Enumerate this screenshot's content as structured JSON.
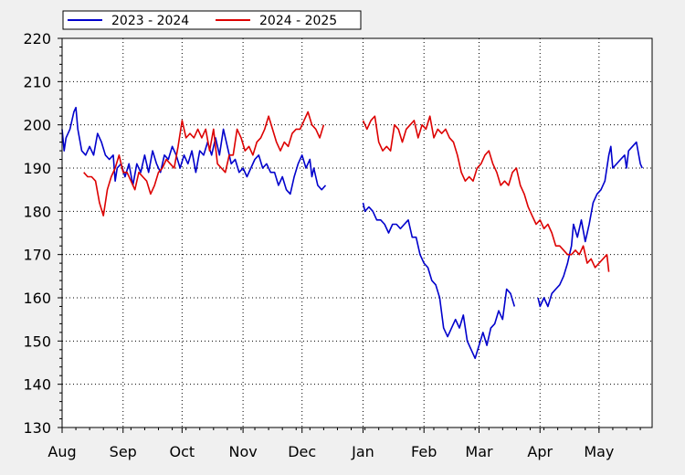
{
  "chart_data": {
    "type": "line",
    "title": "",
    "xlabel": "",
    "ylabel": "",
    "ylim": [
      130,
      220
    ],
    "yticks": [
      130,
      140,
      150,
      160,
      170,
      180,
      190,
      200,
      210,
      220
    ],
    "xticks": [
      "Aug",
      "Sep",
      "Oct",
      "Nov",
      "Dec",
      "Jan",
      "Feb",
      "Mar",
      "Apr",
      "May"
    ],
    "x_unit": "day index from start of Aug",
    "xlim": [
      0,
      300
    ],
    "xtick_positions": [
      0,
      31,
      61,
      92,
      122,
      153,
      184,
      212,
      243,
      273
    ],
    "grid": true,
    "legend": {
      "placement": "top-left",
      "entries": [
        "2023 - 2024",
        "2024 - 2025"
      ]
    },
    "series": [
      {
        "name": "2023 - 2024",
        "color": "#0000cc",
        "segments": [
          [
            [
              0,
              199
            ],
            [
              1,
              194
            ],
            [
              2,
              197
            ],
            [
              4,
              199
            ],
            [
              6,
              203
            ],
            [
              7,
              204
            ],
            [
              8,
              199
            ],
            [
              10,
              194
            ],
            [
              12,
              193
            ],
            [
              14,
              195
            ],
            [
              16,
              193
            ],
            [
              18,
              198
            ],
            [
              20,
              196
            ],
            [
              22,
              193
            ],
            [
              24,
              192
            ],
            [
              26,
              193
            ],
            [
              27,
              187
            ],
            [
              28,
              190
            ],
            [
              30,
              191
            ],
            [
              32,
              188
            ],
            [
              34,
              191
            ],
            [
              36,
              186
            ],
            [
              38,
              191
            ],
            [
              40,
              189
            ],
            [
              42,
              193
            ],
            [
              44,
              189
            ],
            [
              46,
              194
            ],
            [
              48,
              191
            ],
            [
              50,
              189
            ],
            [
              52,
              193
            ],
            [
              54,
              192
            ],
            [
              56,
              195
            ],
            [
              58,
              193
            ],
            [
              60,
              190
            ],
            [
              62,
              193
            ],
            [
              64,
              191
            ],
            [
              66,
              194
            ],
            [
              68,
              189
            ],
            [
              70,
              194
            ],
            [
              72,
              193
            ],
            [
              74,
              196
            ],
            [
              76,
              193
            ],
            [
              78,
              197
            ],
            [
              80,
              193
            ],
            [
              82,
              199
            ],
            [
              84,
              195
            ],
            [
              86,
              191
            ],
            [
              88,
              192
            ],
            [
              90,
              189
            ],
            [
              92,
              190
            ],
            [
              94,
              188
            ],
            [
              96,
              190
            ],
            [
              98,
              192
            ],
            [
              100,
              193
            ],
            [
              102,
              190
            ],
            [
              104,
              191
            ],
            [
              106,
              189
            ],
            [
              108,
              189
            ],
            [
              110,
              186
            ],
            [
              112,
              188
            ],
            [
              114,
              185
            ],
            [
              116,
              184
            ],
            [
              118,
              188
            ],
            [
              120,
              191
            ],
            [
              122,
              193
            ],
            [
              124,
              190
            ],
            [
              126,
              192
            ],
            [
              127,
              188
            ],
            [
              128,
              190
            ],
            [
              130,
              186
            ],
            [
              132,
              185
            ],
            [
              134,
              186
            ]
          ],
          [
            [
              153,
              182
            ],
            [
              154,
              180
            ],
            [
              156,
              181
            ],
            [
              158,
              180
            ],
            [
              160,
              178
            ],
            [
              162,
              178
            ],
            [
              164,
              177
            ],
            [
              166,
              175
            ],
            [
              168,
              177
            ],
            [
              170,
              177
            ],
            [
              172,
              176
            ],
            [
              174,
              177
            ],
            [
              176,
              178
            ],
            [
              178,
              174
            ],
            [
              180,
              174
            ],
            [
              182,
              170
            ],
            [
              184,
              168
            ],
            [
              186,
              167
            ],
            [
              188,
              164
            ],
            [
              190,
              163
            ],
            [
              192,
              160
            ],
            [
              194,
              153
            ],
            [
              196,
              151
            ],
            [
              198,
              153
            ],
            [
              200,
              155
            ],
            [
              202,
              153
            ],
            [
              204,
              156
            ],
            [
              206,
              150
            ],
            [
              208,
              148
            ],
            [
              210,
              146
            ],
            [
              212,
              149
            ],
            [
              214,
              152
            ],
            [
              216,
              149
            ],
            [
              218,
              153
            ],
            [
              220,
              154
            ],
            [
              222,
              157
            ],
            [
              224,
              155
            ],
            [
              226,
              162
            ],
            [
              228,
              161
            ],
            [
              230,
              158
            ]
          ],
          [
            [
              242,
              160
            ],
            [
              243,
              158
            ],
            [
              245,
              160
            ],
            [
              247,
              158
            ],
            [
              249,
              161
            ],
            [
              251,
              162
            ],
            [
              253,
              163
            ],
            [
              255,
              165
            ],
            [
              257,
              168
            ],
            [
              259,
              172
            ],
            [
              260,
              177
            ],
            [
              262,
              174
            ],
            [
              264,
              178
            ],
            [
              266,
              173
            ],
            [
              268,
              177
            ],
            [
              270,
              182
            ],
            [
              272,
              184
            ],
            [
              274,
              185
            ],
            [
              276,
              187
            ],
            [
              278,
              193
            ],
            [
              279,
              195
            ],
            [
              280,
              190
            ],
            [
              282,
              191
            ],
            [
              284,
              192
            ],
            [
              286,
              193
            ],
            [
              287,
              190
            ],
            [
              288,
              194
            ],
            [
              290,
              195
            ],
            [
              292,
              196
            ],
            [
              294,
              191
            ],
            [
              295,
              190
            ]
          ]
        ]
      },
      {
        "name": "2024 - 2025",
        "color": "#dd0000",
        "segments": [
          [
            [
              11,
              189
            ],
            [
              13,
              188
            ],
            [
              15,
              188
            ],
            [
              17,
              187
            ],
            [
              19,
              182
            ],
            [
              21,
              179
            ],
            [
              23,
              185
            ],
            [
              25,
              188
            ],
            [
              27,
              190
            ],
            [
              29,
              193
            ],
            [
              31,
              189
            ],
            [
              33,
              189
            ],
            [
              35,
              187
            ],
            [
              37,
              185
            ],
            [
              39,
              189
            ],
            [
              41,
              188
            ],
            [
              43,
              187
            ],
            [
              45,
              184
            ],
            [
              47,
              186
            ],
            [
              49,
              189
            ],
            [
              51,
              190
            ],
            [
              53,
              192
            ],
            [
              55,
              191
            ],
            [
              57,
              190
            ],
            [
              59,
              195
            ],
            [
              61,
              201
            ],
            [
              63,
              197
            ],
            [
              65,
              198
            ],
            [
              67,
              197
            ],
            [
              69,
              199
            ],
            [
              71,
              197
            ],
            [
              73,
              199
            ],
            [
              75,
              194
            ],
            [
              77,
              199
            ],
            [
              79,
              191
            ],
            [
              81,
              190
            ],
            [
              83,
              189
            ],
            [
              85,
              193
            ],
            [
              87,
              193
            ],
            [
              89,
              199
            ],
            [
              91,
              197
            ],
            [
              93,
              194
            ],
            [
              95,
              195
            ],
            [
              97,
              193
            ],
            [
              99,
              196
            ],
            [
              101,
              197
            ],
            [
              103,
              199
            ],
            [
              105,
              202
            ],
            [
              107,
              199
            ],
            [
              109,
              196
            ],
            [
              111,
              194
            ],
            [
              113,
              196
            ],
            [
              115,
              195
            ],
            [
              117,
              198
            ],
            [
              119,
              199
            ],
            [
              121,
              199
            ],
            [
              123,
              201
            ],
            [
              125,
              203
            ],
            [
              127,
              200
            ],
            [
              129,
              199
            ],
            [
              131,
              197
            ],
            [
              133,
              200
            ]
          ],
          [
            [
              153,
              201
            ],
            [
              155,
              199
            ],
            [
              157,
              201
            ],
            [
              159,
              202
            ],
            [
              161,
              196
            ],
            [
              163,
              194
            ],
            [
              165,
              195
            ],
            [
              167,
              194
            ],
            [
              169,
              200
            ],
            [
              171,
              199
            ],
            [
              173,
              196
            ],
            [
              175,
              199
            ],
            [
              177,
              200
            ],
            [
              179,
              201
            ],
            [
              181,
              197
            ],
            [
              183,
              200
            ],
            [
              185,
              199
            ],
            [
              187,
              202
            ],
            [
              189,
              197
            ],
            [
              191,
              199
            ],
            [
              193,
              198
            ],
            [
              195,
              199
            ],
            [
              197,
              197
            ],
            [
              199,
              196
            ],
            [
              201,
              193
            ],
            [
              203,
              189
            ],
            [
              205,
              187
            ],
            [
              207,
              188
            ],
            [
              209,
              187
            ],
            [
              211,
              190
            ],
            [
              213,
              191
            ],
            [
              215,
              193
            ],
            [
              217,
              194
            ],
            [
              219,
              191
            ],
            [
              221,
              189
            ],
            [
              223,
              186
            ],
            [
              225,
              187
            ],
            [
              227,
              186
            ],
            [
              229,
              189
            ],
            [
              231,
              190
            ],
            [
              233,
              186
            ],
            [
              235,
              184
            ],
            [
              237,
              181
            ],
            [
              239,
              179
            ],
            [
              241,
              177
            ],
            [
              243,
              178
            ],
            [
              245,
              176
            ],
            [
              247,
              177
            ],
            [
              249,
              175
            ],
            [
              251,
              172
            ],
            [
              253,
              172
            ],
            [
              255,
              171
            ],
            [
              257,
              170
            ],
            [
              259,
              170
            ],
            [
              261,
              171
            ],
            [
              263,
              170
            ],
            [
              265,
              172
            ],
            [
              267,
              168
            ],
            [
              269,
              169
            ],
            [
              271,
              167
            ],
            [
              273,
              168
            ],
            [
              275,
              169
            ],
            [
              277,
              170
            ],
            [
              278,
              166
            ]
          ]
        ]
      }
    ]
  }
}
